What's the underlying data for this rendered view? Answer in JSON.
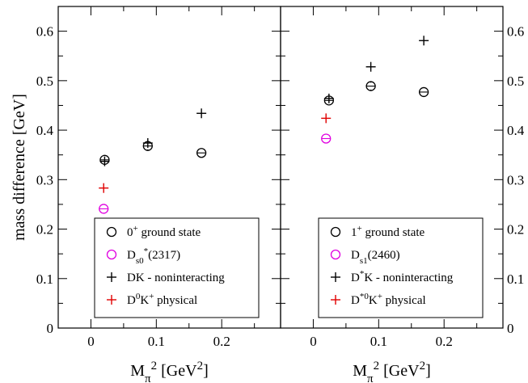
{
  "chart_data": [
    {
      "type": "scatter",
      "ylabel": "mass difference [GeV]",
      "xlabel": {
        "base": "M",
        "sub": "π",
        "sup": "2",
        "unit_open": " [GeV",
        "unit_sup": "2",
        "unit_close": "]"
      },
      "xlim": [
        -0.05,
        0.29
      ],
      "ylim": [
        0,
        0.65
      ],
      "x_ticks": [
        {
          "v": 0,
          "label": "0"
        },
        {
          "v": 0.1,
          "label": "0.1"
        },
        {
          "v": 0.2,
          "label": "0.2"
        }
      ],
      "y_ticks": [
        {
          "v": 0,
          "label": "0"
        },
        {
          "v": 0.1,
          "label": "0.1"
        },
        {
          "v": 0.2,
          "label": "0.2"
        },
        {
          "v": 0.3,
          "label": "0.3"
        },
        {
          "v": 0.4,
          "label": "0.4"
        },
        {
          "v": 0.5,
          "label": "0.5"
        },
        {
          "v": 0.6,
          "label": "0.6"
        }
      ],
      "series": [
        {
          "key": "ground",
          "marker": "circle",
          "color": "#000000",
          "legend": [
            {
              "t": "0"
            },
            {
              "t": "+",
              "sup": true
            },
            {
              "t": " ground state"
            }
          ],
          "points": [
            {
              "x": 0.021,
              "y": 0.34,
              "err": 0.009
            },
            {
              "x": 0.087,
              "y": 0.368,
              "err": 0.007
            },
            {
              "x": 0.169,
              "y": 0.354,
              "err": 0.009
            }
          ]
        },
        {
          "key": "physical",
          "marker": "circle",
          "color": "#e000e0",
          "legend": [
            {
              "t": "D"
            },
            {
              "t": "s0",
              "sub": true
            },
            {
              "t": "*",
              "sup": true
            },
            {
              "t": "(2317)"
            }
          ],
          "points": [
            {
              "x": 0.0195,
              "y": 0.241,
              "err": 0.0
            }
          ]
        },
        {
          "key": "noninteracting",
          "marker": "plus",
          "color": "#000000",
          "legend": [
            {
              "t": "DK - noninteracting"
            }
          ],
          "points": [
            {
              "x": 0.021,
              "y": 0.337
            },
            {
              "x": 0.087,
              "y": 0.374
            },
            {
              "x": 0.169,
              "y": 0.434
            }
          ]
        },
        {
          "key": "threshold",
          "marker": "plus",
          "color": "#e00000",
          "legend": [
            {
              "t": "D"
            },
            {
              "t": "0",
              "sup": true
            },
            {
              "t": "K"
            },
            {
              "t": "+",
              "sup": true
            },
            {
              "t": " physical"
            }
          ],
          "points": [
            {
              "x": 0.0195,
              "y": 0.283
            }
          ]
        }
      ],
      "legend_position": "bottom-right"
    },
    {
      "type": "scatter",
      "ylabel": "",
      "xlabel": {
        "base": "M",
        "sub": "π",
        "sup": "2",
        "unit_open": " [GeV",
        "unit_sup": "2",
        "unit_close": "]"
      },
      "xlim": [
        -0.05,
        0.29
      ],
      "ylim": [
        0,
        0.65
      ],
      "x_ticks": [
        {
          "v": 0,
          "label": "0"
        },
        {
          "v": 0.1,
          "label": "0.1"
        },
        {
          "v": 0.2,
          "label": "0.2"
        }
      ],
      "y_ticks": [
        {
          "v": 0,
          "label": "0"
        },
        {
          "v": 0.1,
          "label": "0.1"
        },
        {
          "v": 0.2,
          "label": "0.2"
        },
        {
          "v": 0.3,
          "label": "0.3"
        },
        {
          "v": 0.4,
          "label": "0.4"
        },
        {
          "v": 0.5,
          "label": "0.5"
        },
        {
          "v": 0.6,
          "label": "0.6"
        }
      ],
      "series": [
        {
          "key": "ground",
          "marker": "circle",
          "color": "#000000",
          "legend": [
            {
              "t": "1"
            },
            {
              "t": "+",
              "sup": true
            },
            {
              "t": " ground state"
            }
          ],
          "points": [
            {
              "x": 0.024,
              "y": 0.46,
              "err": 0.009
            },
            {
              "x": 0.088,
              "y": 0.489,
              "err": 0.007
            },
            {
              "x": 0.169,
              "y": 0.477,
              "err": 0.008
            }
          ]
        },
        {
          "key": "physical",
          "marker": "circle",
          "color": "#e000e0",
          "legend": [
            {
              "t": "D"
            },
            {
              "t": "s1",
              "sub": true
            },
            {
              "t": "(2460)"
            }
          ],
          "points": [
            {
              "x": 0.0195,
              "y": 0.383,
              "err": 0.0
            }
          ]
        },
        {
          "key": "noninteracting",
          "marker": "plus",
          "color": "#000000",
          "legend": [
            {
              "t": "D"
            },
            {
              "t": "*",
              "sup": true
            },
            {
              "t": "K - noninteracting"
            }
          ],
          "points": [
            {
              "x": 0.024,
              "y": 0.464
            },
            {
              "x": 0.088,
              "y": 0.528
            },
            {
              "x": 0.169,
              "y": 0.581
            }
          ]
        },
        {
          "key": "threshold",
          "marker": "plus",
          "color": "#e00000",
          "legend": [
            {
              "t": "D"
            },
            {
              "t": "*0",
              "sup": true
            },
            {
              "t": "K"
            },
            {
              "t": "+",
              "sup": true
            },
            {
              "t": " physical"
            }
          ],
          "points": [
            {
              "x": 0.0195,
              "y": 0.424
            }
          ]
        }
      ],
      "legend_position": "bottom-right"
    }
  ]
}
